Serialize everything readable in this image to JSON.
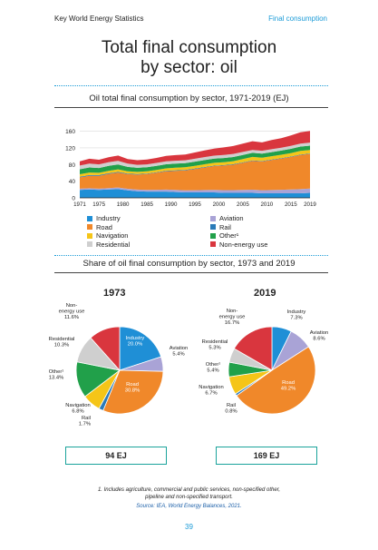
{
  "header": {
    "left": "Key World Energy Statistics",
    "right": "Final consumption"
  },
  "title_line1": "Total final consumption",
  "title_line2": "by sector: oil",
  "area_chart_title": "Oil total final consumption by sector, 1971-2019 (EJ)",
  "pie_section_title": "Share of oil final consumption by sector, 1973 and 2019",
  "colors": {
    "Industry": "#1f8fd6",
    "Aviation": "#a9a3d6",
    "Road": "#f0882a",
    "Rail": "#2a7ab8",
    "Navigation": "#f5c518",
    "Other": "#21a04a",
    "Residential": "#cfcfcf",
    "Non-energy use": "#d9363e"
  },
  "legend": [
    {
      "key": "Industry",
      "label": "Industry"
    },
    {
      "key": "Aviation",
      "label": "Aviation"
    },
    {
      "key": "Road",
      "label": "Road"
    },
    {
      "key": "Rail",
      "label": "Rail"
    },
    {
      "key": "Navigation",
      "label": "Navigation"
    },
    {
      "key": "Other",
      "label": "Other¹"
    },
    {
      "key": "Residential",
      "label": "Residential"
    },
    {
      "key": "Non-energy use",
      "label": "Non-energy use"
    }
  ],
  "chart_data": [
    {
      "type": "area",
      "title": "Oil total final consumption by sector, 1971-2019 (EJ)",
      "x": [
        1971,
        1973,
        1975,
        1977,
        1979,
        1981,
        1983,
        1985,
        1987,
        1989,
        1991,
        1993,
        1995,
        1997,
        1999,
        2001,
        2003,
        2005,
        2007,
        2009,
        2011,
        2013,
        2015,
        2017,
        2019
      ],
      "x_ticks": [
        1971,
        1975,
        1980,
        1985,
        1990,
        1995,
        2000,
        2005,
        2010,
        2015,
        2019
      ],
      "y_ticks": [
        0,
        40,
        80,
        120,
        160
      ],
      "ylim": [
        0,
        170
      ],
      "series": [
        {
          "name": "Industry",
          "values": [
            19,
            20,
            19,
            20,
            21,
            18,
            16,
            15,
            15,
            15,
            14,
            13,
            13,
            13,
            13,
            12,
            12,
            12,
            12,
            11,
            11,
            11,
            11,
            11,
            12
          ]
        },
        {
          "name": "Aviation",
          "values": [
            3,
            3,
            3,
            3.5,
            3.8,
            3.8,
            3.8,
            4,
            4.4,
            4.8,
            5,
            5.1,
            5.4,
            5.8,
            6.2,
            6.5,
            6.6,
            7.1,
            7.6,
            7.4,
            7.8,
            8.3,
            9,
            10,
            10.5
          ]
        },
        {
          "name": "Road",
          "values": [
            27,
            30,
            31,
            34,
            36,
            35,
            36,
            38,
            41,
            44,
            46,
            48,
            51,
            54,
            57,
            59,
            61,
            65,
            69,
            69,
            72,
            75,
            78,
            82,
            83
          ]
        },
        {
          "name": "Rail",
          "values": [
            1.6,
            1.6,
            1.6,
            1.6,
            1.6,
            1.5,
            1.4,
            1.4,
            1.3,
            1.3,
            1.3,
            1.2,
            1.2,
            1.2,
            1.2,
            1.2,
            1.2,
            1.2,
            1.2,
            1.1,
            1.1,
            1.1,
            1.1,
            1.1,
            1.1
          ]
        },
        {
          "name": "Navigation",
          "values": [
            6,
            6.1,
            5.6,
            5.8,
            6,
            5.5,
            5.2,
            5.3,
            5.5,
            5.8,
            6,
            6.1,
            6.3,
            6.6,
            6.8,
            7,
            7.2,
            7.8,
            8.4,
            8,
            8.1,
            8.1,
            8.3,
            8.5,
            8.3
          ]
        },
        {
          "name": "Other",
          "values": [
            12,
            12.4,
            11.5,
            11.8,
            11.8,
            10.5,
            9.8,
            9.7,
            9.8,
            9.8,
            9.8,
            9.8,
            10,
            10,
            10,
            10,
            10,
            10,
            9.8,
            9.6,
            9.8,
            10,
            10.2,
            10.5,
            10.4
          ]
        },
        {
          "name": "Residential",
          "values": [
            9,
            9.3,
            8.8,
            9,
            8.8,
            7.8,
            7.2,
            7,
            7,
            7,
            7,
            7,
            7,
            7.2,
            7.2,
            7.4,
            7.4,
            7.2,
            7,
            7,
            7,
            7,
            7.1,
            7.3,
            7.4
          ]
        },
        {
          "name": "Non-energy use",
          "values": [
            10,
            11.5,
            11,
            12,
            12.5,
            11,
            11,
            11.5,
            12,
            13,
            13.5,
            14,
            15,
            16,
            17,
            18,
            19,
            20,
            21,
            20,
            22,
            23,
            25,
            27,
            28
          ]
        }
      ]
    },
    {
      "type": "pie",
      "title": "1973",
      "total_label": "94 EJ",
      "slices": [
        {
          "name": "Industry",
          "value": 20.0,
          "label_lines": [
            "Industry",
            "20.0%"
          ]
        },
        {
          "name": "Aviation",
          "value": 5.4,
          "label_lines": [
            "Aviation",
            "5.4%"
          ]
        },
        {
          "name": "Road",
          "value": 30.8,
          "label_lines": [
            "Road",
            "30.8%"
          ]
        },
        {
          "name": "Rail",
          "value": 1.7,
          "label_lines": [
            "Rail",
            "1.7%"
          ]
        },
        {
          "name": "Navigation",
          "value": 6.8,
          "label_lines": [
            "Navigation",
            "6.8%"
          ]
        },
        {
          "name": "Other",
          "value": 13.4,
          "label_lines": [
            "Other¹",
            "13.4%"
          ]
        },
        {
          "name": "Residential",
          "value": 10.3,
          "label_lines": [
            "Residential",
            "10.3%"
          ]
        },
        {
          "name": "Non-energy use",
          "value": 11.6,
          "label_lines": [
            "Non-",
            "energy use",
            "11.6%"
          ]
        }
      ]
    },
    {
      "type": "pie",
      "title": "2019",
      "total_label": "169 EJ",
      "slices": [
        {
          "name": "Industry",
          "value": 7.3,
          "label_lines": [
            "Industry",
            "7.3%"
          ]
        },
        {
          "name": "Aviation",
          "value": 8.6,
          "label_lines": [
            "Aviation",
            "8.6%"
          ]
        },
        {
          "name": "Road",
          "value": 49.2,
          "label_lines": [
            "Road",
            "49.2%"
          ]
        },
        {
          "name": "Rail",
          "value": 0.8,
          "label_lines": [
            "Rail",
            "0.8%"
          ]
        },
        {
          "name": "Navigation",
          "value": 6.7,
          "label_lines": [
            "Navigation",
            "6.7%"
          ]
        },
        {
          "name": "Other",
          "value": 5.4,
          "label_lines": [
            "Other¹",
            "5.4%"
          ]
        },
        {
          "name": "Residential",
          "value": 5.3,
          "label_lines": [
            "Residential",
            "5.3%"
          ]
        },
        {
          "name": "Non-energy use",
          "value": 16.7,
          "label_lines": [
            "Non-",
            "energy use",
            "16.7%"
          ]
        }
      ]
    }
  ],
  "footnote_line1": "1. Includes agriculture, commercial and public services, non-specified other,",
  "footnote_line2": "pipeline and non-specified transport.",
  "source": "Source: IEA, World Energy Balances, 2021.",
  "page_number": "39"
}
